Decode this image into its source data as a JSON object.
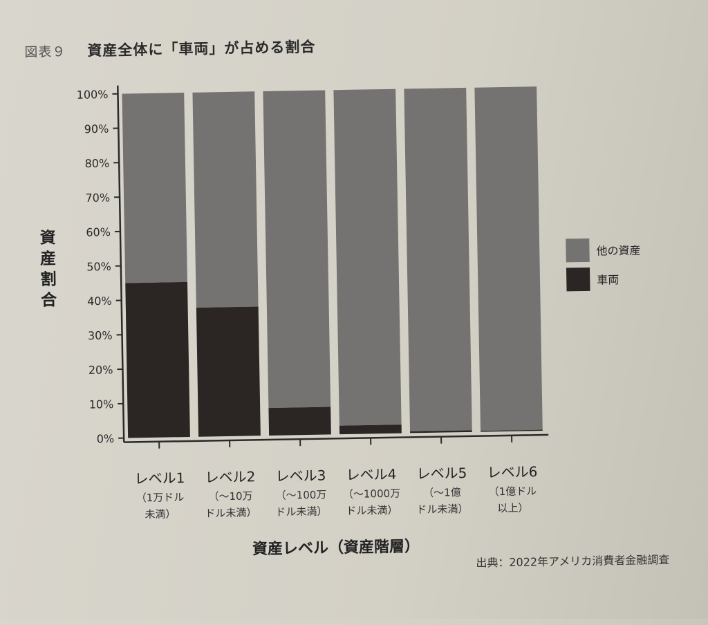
{
  "figure_label": "図表９",
  "figure_title": "資産全体に「車両」が占める割合",
  "source": "出典：2022年アメリカ消費者金融調査",
  "colors": {
    "vehicle": "#2b2623",
    "other": "#757371",
    "axis": "#2a2a2a"
  },
  "chart_data": {
    "type": "bar",
    "stacked": true,
    "title": "資産全体に「車両」が占める割合",
    "ylabel": "資産割合",
    "xlabel": "資産レベル（資産階層）",
    "categories": [
      "レベル1",
      "レベル2",
      "レベル3",
      "レベル4",
      "レベル5",
      "レベル6"
    ],
    "category_sublabels": [
      [
        "（1万ドル",
        "未満）"
      ],
      [
        "（〜10万",
        "ドル未満）"
      ],
      [
        "（〜100万",
        "ドル未満）"
      ],
      [
        "（〜1000万",
        "ドル未満）"
      ],
      [
        "（〜1億",
        "ドル未満）"
      ],
      [
        "（1億ドル",
        "以上）"
      ]
    ],
    "ylim": [
      0,
      100
    ],
    "yticks": [
      "0%",
      "10%",
      "20%",
      "30%",
      "40%",
      "50%",
      "60%",
      "70%",
      "80%",
      "90%",
      "100%"
    ],
    "series": [
      {
        "name": "車両",
        "values": [
          45,
          37.5,
          8,
          2.5,
          0.5,
          0.3
        ]
      },
      {
        "name": "他の資産",
        "values": [
          55,
          62.5,
          92,
          97.5,
          99.5,
          99.7
        ]
      }
    ],
    "legend_position": "right",
    "legend_order": [
      "他の資産",
      "車両"
    ],
    "grid": false
  }
}
